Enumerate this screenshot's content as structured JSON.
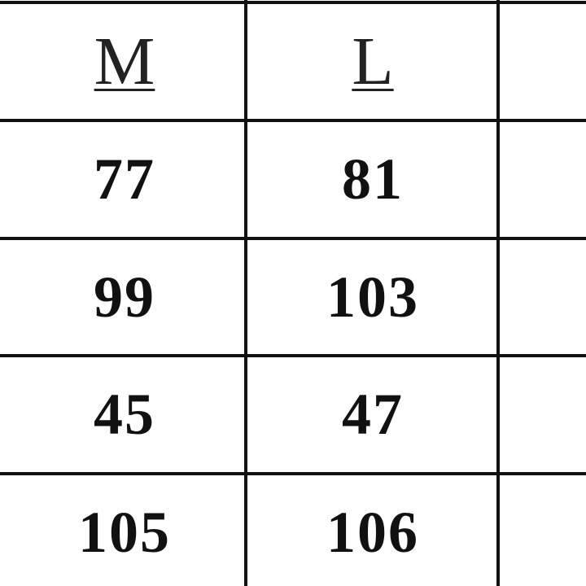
{
  "table": {
    "header": [
      "M",
      "L"
    ],
    "rows": [
      [
        77,
        81
      ],
      [
        99,
        103
      ],
      [
        45,
        47
      ],
      [
        105,
        106
      ]
    ]
  }
}
